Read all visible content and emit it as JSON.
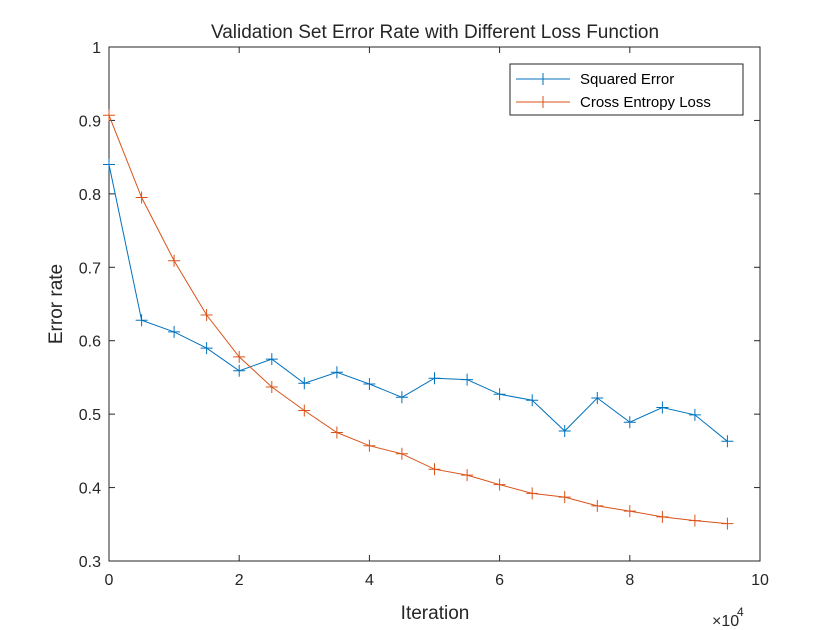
{
  "chart_data": {
    "type": "line",
    "title": "Validation Set Error Rate with Different Loss Function",
    "xlabel": "Iteration",
    "ylabel": "Error rate",
    "xlim": [
      0,
      100000
    ],
    "ylim": [
      0.3,
      1
    ],
    "x_ticks": [
      0,
      20000,
      40000,
      60000,
      80000,
      100000
    ],
    "x_tick_labels": [
      "0",
      "2",
      "4",
      "6",
      "8",
      "10"
    ],
    "x_multiplier": {
      "base": "×10",
      "exponent": "4"
    },
    "y_ticks": [
      0.3,
      0.4,
      0.5,
      0.6,
      0.7,
      0.8,
      0.9,
      1
    ],
    "y_tick_labels": [
      "0.3",
      "0.4",
      "0.5",
      "0.6",
      "0.7",
      "0.8",
      "0.9",
      "1"
    ],
    "grid": false,
    "legend_position": "top-right",
    "marker": "+",
    "x": [
      0,
      5000,
      10000,
      15000,
      20000,
      25000,
      30000,
      35000,
      40000,
      45000,
      50000,
      55000,
      60000,
      65000,
      70000,
      75000,
      80000,
      85000,
      90000,
      95000
    ],
    "series": [
      {
        "name": "Squared Error",
        "color": "#0072BD",
        "values": [
          0.84,
          0.628,
          0.612,
          0.59,
          0.559,
          0.575,
          0.542,
          0.557,
          0.541,
          0.523,
          0.549,
          0.547,
          0.527,
          0.519,
          0.477,
          0.522,
          0.489,
          0.509,
          0.499,
          0.463
        ]
      },
      {
        "name": "Cross Entropy Loss",
        "color": "#D95319",
        "values": [
          0.907,
          0.795,
          0.709,
          0.635,
          0.578,
          0.537,
          0.505,
          0.475,
          0.457,
          0.446,
          0.425,
          0.417,
          0.404,
          0.392,
          0.387,
          0.375,
          0.368,
          0.36,
          0.355,
          0.351
        ]
      }
    ]
  }
}
